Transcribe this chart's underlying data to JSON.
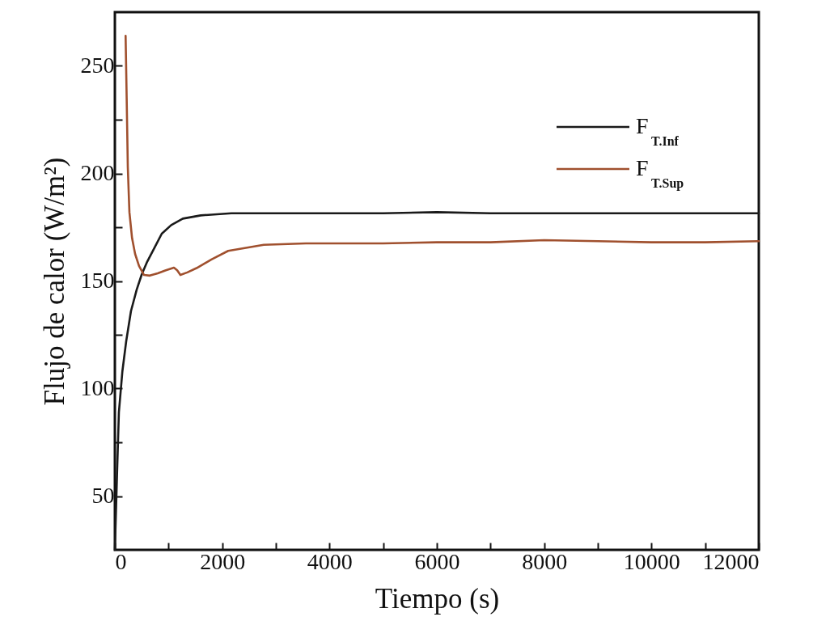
{
  "chart_data": {
    "type": "line",
    "xlabel": "Tiempo (s)",
    "ylabel": "Flujo de calor (W/m²)",
    "xlim": [
      0,
      12000
    ],
    "ylim": [
      25,
      275
    ],
    "xticks": [
      0,
      {
        "value": 1000,
        "label": null
      },
      2000,
      {
        "value": 3000,
        "label": null
      },
      4000,
      {
        "value": 5000,
        "label": null
      },
      6000,
      {
        "value": 7000,
        "label": null
      },
      8000,
      {
        "value": 9000,
        "label": null
      },
      10000,
      {
        "value": 11000,
        "label": null
      },
      12000
    ],
    "yticks": [
      {
        "value": 75,
        "label": null
      },
      50,
      100,
      {
        "value": 125,
        "label": null
      },
      150,
      {
        "value": 175,
        "label": null
      },
      200,
      {
        "value": 225,
        "label": null
      },
      250
    ],
    "legend": "top right",
    "grid": false,
    "line_style": "solid",
    "marker": "none",
    "series": [
      {
        "name": "F$_{T.Inf}$",
        "color": "#1a1a1a",
        "x": [
          0,
          40,
          75,
          140,
          211,
          300,
          407,
          500,
          603,
          750,
          874,
          1050,
          1266,
          1600,
          2171,
          3000,
          4000,
          5000,
          6000,
          7000,
          8000,
          9000,
          10000,
          11000,
          12000
        ],
        "values": [
          25,
          60,
          89,
          108,
          122,
          136,
          146,
          153,
          159,
          166,
          172,
          176,
          179,
          180.5,
          181.5,
          181.5,
          181.5,
          181.5,
          182,
          181.5,
          181.5,
          181.5,
          181.5,
          181.5,
          181.5
        ]
      },
      {
        "name": "F$_{T.Sup}$",
        "color": "#a0502e",
        "x": [
          200,
          220,
          241,
          271,
          320,
          377,
          450,
          543,
          650,
          799,
          950,
          1101,
          1161,
          1221,
          1350,
          1523,
          1800,
          2111,
          2774,
          3558,
          4000,
          5000,
          6000,
          7000,
          8000,
          9000,
          10000,
          11000,
          12000
        ],
        "values": [
          264,
          235,
          203,
          182,
          170,
          162.6,
          157,
          152.8,
          152.5,
          153.6,
          155,
          156.2,
          155,
          152.8,
          154,
          156,
          160,
          164,
          166.8,
          167.5,
          167.5,
          167.5,
          168,
          168,
          169,
          168.5,
          168,
          168,
          168.5
        ]
      }
    ]
  }
}
